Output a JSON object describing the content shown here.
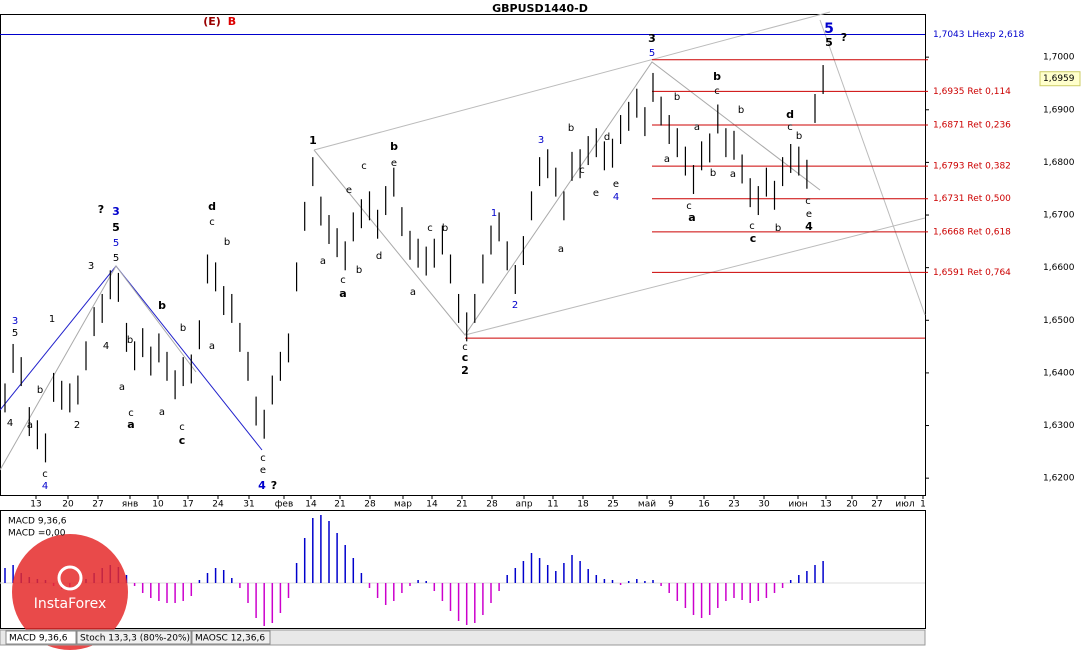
{
  "chart_data": {
    "type": "ohlc",
    "title": "GBPUSD1440-D",
    "ylim": [
      1.6168,
      1.7082
    ],
    "yticks": [
      {
        "value": 1.7,
        "label": "1,7000"
      },
      {
        "value": 1.69,
        "label": "1,6900"
      },
      {
        "value": 1.68,
        "label": "1,6800"
      },
      {
        "value": 1.67,
        "label": "1,6700"
      },
      {
        "value": 1.66,
        "label": "1,6600"
      },
      {
        "value": 1.65,
        "label": "1,6500"
      },
      {
        "value": 1.64,
        "label": "1,6400"
      },
      {
        "value": 1.63,
        "label": "1,6300"
      },
      {
        "value": 1.62,
        "label": "1,6200"
      }
    ],
    "current_price": {
      "value": 1.6959,
      "label": "1,6959"
    },
    "x_labels": [
      "13",
      "20",
      "27",
      "янв",
      "10",
      "17",
      "24",
      "31",
      "фев",
      "14",
      "21",
      "28",
      "мар",
      "14",
      "21",
      "28",
      "апр",
      "11",
      "18",
      "25",
      "май",
      "9",
      "16",
      "23",
      "30",
      "июн",
      "13",
      "20",
      "27",
      "июл",
      "1"
    ],
    "high": [
      1.638,
      1.6455,
      1.643,
      1.6335,
      1.631,
      1.6285,
      1.64,
      1.6385,
      1.638,
      1.6395,
      1.646,
      1.6525,
      1.655,
      1.6595,
      1.659,
      1.6495,
      1.646,
      1.6485,
      1.645,
      1.6475,
      1.644,
      1.6405,
      1.643,
      1.6435,
      1.65,
      1.6625,
      1.661,
      1.6565,
      1.655,
      1.6495,
      1.644,
      1.6355,
      1.633,
      1.6395,
      1.644,
      1.6475,
      1.661,
      1.6725,
      1.681,
      1.6735,
      1.67,
      1.6675,
      1.665,
      1.6705,
      1.673,
      1.6745,
      1.671,
      1.6755,
      1.679,
      1.6715,
      1.667,
      1.6655,
      1.664,
      1.6655,
      1.668,
      1.6625,
      1.655,
      1.6515,
      1.655,
      1.6625,
      1.668,
      1.6705,
      1.665,
      1.6605,
      1.666,
      1.6745,
      1.681,
      1.6825,
      1.679,
      1.6745,
      1.682,
      1.6825,
      1.685,
      1.6865,
      1.684,
      1.6845,
      1.689,
      1.6915,
      1.694,
      1.6905,
      1.697,
      1.6925,
      1.689,
      1.6865,
      1.683,
      1.6795,
      1.684,
      1.6855,
      1.691,
      1.6865,
      1.686,
      1.6815,
      1.677,
      1.6755,
      1.679,
      1.6765,
      1.681,
      1.6835,
      1.683,
      1.6805,
      1.693,
      1.6985
    ],
    "low": [
      1.6325,
      1.64,
      1.6375,
      1.628,
      1.6255,
      1.623,
      1.6345,
      1.633,
      1.6325,
      1.634,
      1.6405,
      1.647,
      1.6495,
      1.654,
      1.6535,
      1.644,
      1.6405,
      1.643,
      1.6395,
      1.642,
      1.6385,
      1.635,
      1.6375,
      1.638,
      1.6445,
      1.657,
      1.6555,
      1.651,
      1.6495,
      1.644,
      1.6385,
      1.63,
      1.6275,
      1.634,
      1.6385,
      1.642,
      1.6555,
      1.667,
      1.6755,
      1.668,
      1.6645,
      1.662,
      1.6595,
      1.665,
      1.6675,
      1.669,
      1.6655,
      1.67,
      1.6735,
      1.666,
      1.6615,
      1.66,
      1.6585,
      1.66,
      1.6625,
      1.657,
      1.6495,
      1.646,
      1.6495,
      1.657,
      1.6625,
      1.665,
      1.6595,
      1.655,
      1.6605,
      1.669,
      1.6755,
      1.677,
      1.6735,
      1.669,
      1.6765,
      1.677,
      1.6795,
      1.681,
      1.6785,
      1.679,
      1.6835,
      1.686,
      1.6885,
      1.685,
      1.6915,
      1.687,
      1.6835,
      1.681,
      1.6775,
      1.674,
      1.6785,
      1.68,
      1.6855,
      1.681,
      1.6805,
      1.676,
      1.6715,
      1.67,
      1.6735,
      1.671,
      1.6755,
      1.678,
      1.6775,
      1.675,
      1.6875,
      1.693
    ],
    "bar_color": "#000000",
    "expansion_level": {
      "value": 1.7043,
      "label": "1,7043 LHexp 2,618",
      "color": "#0000cc"
    },
    "levels": [
      {
        "value": 1.6935,
        "label": "1,6935 Ret 0,114"
      },
      {
        "value": 1.6871,
        "label": "1,6871 Ret 0,236"
      },
      {
        "value": 1.6793,
        "label": "1,6793 Ret 0,382"
      },
      {
        "value": 1.6731,
        "label": "1,6731 Ret 0,500"
      },
      {
        "value": 1.6668,
        "label": "1,6668 Ret 0,618"
      },
      {
        "value": 1.6591,
        "label": "1,6591 Ret 0,764"
      }
    ],
    "level_color": "#cc0000",
    "extra_levels": [
      1.6995,
      1.6466
    ],
    "wave_labels": [
      {
        "text": "(E)",
        "color": "#990000",
        "bold": true
      },
      {
        "text": "B",
        "color": "#dd0000",
        "bold": true
      },
      {
        "text": "3",
        "color": "#0000cc"
      },
      {
        "text": "5"
      },
      {
        "text": "4"
      },
      {
        "text": "b"
      },
      {
        "text": "a"
      },
      {
        "text": "c"
      },
      {
        "text": "4",
        "color": "#0000cc"
      },
      {
        "text": "1"
      },
      {
        "text": "2"
      },
      {
        "text": "3"
      },
      {
        "text": "4"
      },
      {
        "text": "?",
        "bold": true
      },
      {
        "text": "3",
        "color": "#0000cc",
        "bold": true
      },
      {
        "text": "5",
        "bold": true
      },
      {
        "text": "5",
        "color": "#0000cc"
      },
      {
        "text": "5"
      },
      {
        "text": "a"
      },
      {
        "text": "b"
      },
      {
        "text": "c"
      },
      {
        "text": "a",
        "bold": true
      },
      {
        "text": "b",
        "bold": true
      },
      {
        "text": "a"
      },
      {
        "text": "c"
      },
      {
        "text": "c",
        "bold": true
      },
      {
        "text": "b"
      },
      {
        "text": "a"
      },
      {
        "text": "c"
      },
      {
        "text": "d",
        "bold": true
      },
      {
        "text": "b"
      },
      {
        "text": "c"
      },
      {
        "text": "e"
      },
      {
        "text": "4",
        "color": "#0000cc",
        "bold": true
      },
      {
        "text": "?",
        "bold": true
      },
      {
        "text": "1",
        "bold": true
      },
      {
        "text": "a"
      },
      {
        "text": "c"
      },
      {
        "text": "a",
        "bold": true
      },
      {
        "text": "e"
      },
      {
        "text": "c"
      },
      {
        "text": "b"
      },
      {
        "text": "d"
      },
      {
        "text": "b",
        "bold": true
      },
      {
        "text": "e"
      },
      {
        "text": "a"
      },
      {
        "text": "c"
      },
      {
        "text": "b"
      },
      {
        "text": "c"
      },
      {
        "text": "c",
        "bold": true
      },
      {
        "text": "2",
        "bold": true
      },
      {
        "text": "1",
        "color": "#0000cc"
      },
      {
        "text": "2",
        "color": "#0000cc"
      },
      {
        "text": "3",
        "color": "#0000cc"
      },
      {
        "text": "b"
      },
      {
        "text": "a"
      },
      {
        "text": "c"
      },
      {
        "text": "d"
      },
      {
        "text": "e"
      },
      {
        "text": "e"
      },
      {
        "text": "4",
        "color": "#0000cc"
      },
      {
        "text": "3",
        "bold": true
      },
      {
        "text": "5",
        "color": "#0000cc"
      },
      {
        "text": "b"
      },
      {
        "text": "a"
      },
      {
        "text": "c"
      },
      {
        "text": "a",
        "bold": true
      },
      {
        "text": "a"
      },
      {
        "text": "b"
      },
      {
        "text": "b",
        "bold": true
      },
      {
        "text": "c"
      },
      {
        "text": "b"
      },
      {
        "text": "a"
      },
      {
        "text": "c"
      },
      {
        "text": "c",
        "bold": true
      },
      {
        "text": "b"
      },
      {
        "text": "d",
        "bold": true
      },
      {
        "text": "c"
      },
      {
        "text": "b"
      },
      {
        "text": "c"
      },
      {
        "text": "e"
      },
      {
        "text": "4",
        "bold": true
      },
      {
        "text": "5",
        "color": "#0000cc",
        "bold": true
      },
      {
        "text": "5",
        "bold": true
      },
      {
        "text": "?",
        "bold": true
      }
    ],
    "macd": {
      "label": "MACD 9,36,6",
      "value_label": "MACD =0,00",
      "ylim": [
        -0.0057,
        0.0071
      ],
      "positive_color": "#0000cc",
      "negative_color": "#cc00cc",
      "values": [
        0.0015,
        0.0018,
        0.001,
        0.0006,
        0.0004,
        0.0003,
        -0.0003,
        -0.0006,
        -0.0008,
        -0.0005,
        0.0004,
        0.001,
        0.0015,
        0.0018,
        0.0016,
        0.0008,
        -0.0003,
        -0.001,
        -0.0015,
        -0.0018,
        -0.002,
        -0.002,
        -0.0018,
        -0.0013,
        0.0003,
        0.001,
        0.0015,
        0.0013,
        0.0005,
        -0.0005,
        -0.002,
        -0.0035,
        -0.0043,
        -0.004,
        -0.003,
        -0.0015,
        0.002,
        0.0045,
        0.0065,
        0.0068,
        0.0062,
        0.005,
        0.0038,
        0.0025,
        0.001,
        -0.0005,
        -0.0015,
        -0.0022,
        -0.0018,
        -0.001,
        -0.0003,
        0.0003,
        0.0002,
        -0.0008,
        -0.0018,
        -0.0028,
        -0.0038,
        -0.0042,
        -0.004,
        -0.0032,
        -0.002,
        -0.0008,
        0.0008,
        0.0015,
        0.0022,
        0.003,
        0.0025,
        0.0018,
        0.0012,
        0.002,
        0.0028,
        0.0022,
        0.0014,
        0.0008,
        0.0004,
        0.0003,
        -0.0002,
        0.0002,
        0.0004,
        0.0002,
        0.0003,
        -0.0003,
        -0.001,
        -0.0018,
        -0.0025,
        -0.0032,
        -0.0035,
        -0.0032,
        -0.0025,
        -0.0018,
        -0.0015,
        -0.0017,
        -0.002,
        -0.0018,
        -0.0015,
        -0.001,
        -0.0005,
        0.0003,
        0.0008,
        0.0012,
        0.0018,
        0.0022
      ]
    },
    "tabs": [
      "MACD 9,36,6",
      "Stoch 13,3,3 (80%-20%)",
      "MAOSC 12,36,6"
    ],
    "logo": "InstaForex"
  }
}
